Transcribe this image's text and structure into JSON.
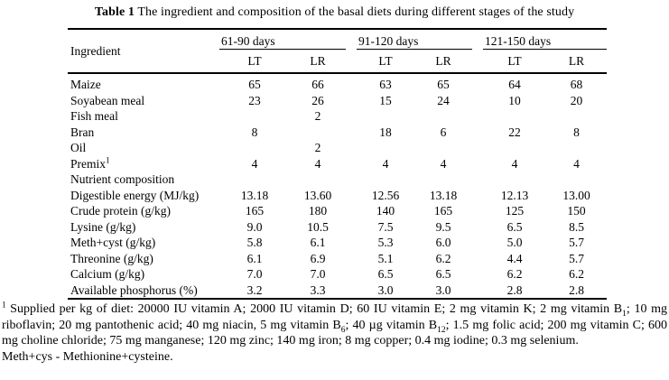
{
  "title": {
    "prefix": "Table 1",
    "text": " The ingredient and composition of the basal diets during different stages of the study"
  },
  "table": {
    "col1_header": "Ingredient",
    "groups": [
      {
        "label": "61-90 days",
        "sub": [
          "LT",
          "LR"
        ]
      },
      {
        "label": "91-120 days",
        "sub": [
          "LT",
          "LR"
        ]
      },
      {
        "label": "121-150 days",
        "sub": [
          "LT",
          "LR"
        ]
      }
    ],
    "rows": [
      {
        "label": "Maize",
        "values": [
          "65",
          "66",
          "63",
          "65",
          "64",
          "68"
        ]
      },
      {
        "label": "Soyabean meal",
        "values": [
          "23",
          "26",
          "15",
          "24",
          "10",
          "20"
        ]
      },
      {
        "label": "Fish meal",
        "values": [
          "",
          "2",
          "",
          "",
          "",
          ""
        ]
      },
      {
        "label": "Bran",
        "values": [
          "8",
          "",
          "18",
          "6",
          "22",
          "8"
        ]
      },
      {
        "label": "Oil",
        "values": [
          "",
          "2",
          "",
          "",
          "",
          ""
        ]
      },
      {
        "label": "Premix",
        "sup": "1",
        "values": [
          "4",
          "4",
          "4",
          "4",
          "4",
          "4"
        ]
      },
      {
        "label": "Nutrient composition",
        "section": true,
        "values": [
          "",
          "",
          "",
          "",
          "",
          ""
        ]
      },
      {
        "label": "Digestible energy (MJ/kg)",
        "values": [
          "13.18",
          "13.60",
          "12.56",
          "13.18",
          "12.13",
          "13.00"
        ]
      },
      {
        "label": "Crude protein (g/kg)",
        "values": [
          "165",
          "180",
          "140",
          "165",
          "125",
          "150"
        ]
      },
      {
        "label": "Lysine (g/kg)",
        "values": [
          "9.0",
          "10.5",
          "7.5",
          "9.5",
          "6.5",
          "8.5"
        ]
      },
      {
        "label": "Meth+cyst (g/kg)",
        "values": [
          "5.8",
          "6.1",
          "5.3",
          "6.0",
          "5.0",
          "5.7"
        ]
      },
      {
        "label": "Threonine (g/kg)",
        "values": [
          "6.1",
          "6.9",
          "5.1",
          "6.2",
          "4.4",
          "5.7"
        ]
      },
      {
        "label": "Calcium (g/kg)",
        "values": [
          "7.0",
          "7.0",
          "6.5",
          "6.5",
          "6.2",
          "6.2"
        ]
      },
      {
        "label": "Available phosphorus (%)",
        "values": [
          "3.2",
          "3.3",
          "3.0",
          "3.0",
          "2.8",
          "2.8"
        ]
      }
    ]
  },
  "footnote": {
    "segments": [
      {
        "style": "sup",
        "text": "1"
      },
      {
        "style": "plain",
        "text": " Supplied per kg of diet: 20000 IU vitamin A; 2000 IU vitamin D; 60 IU vitamin E; 2 mg vitamin K; 2 mg vitamin B"
      },
      {
        "style": "sub",
        "text": "1"
      },
      {
        "style": "plain",
        "text": "; 10 mg riboflavin; 20 mg pantothenic acid; 40 mg niacin, 5 mg vitamin B"
      },
      {
        "style": "sub",
        "text": "6"
      },
      {
        "style": "plain",
        "text": "; 40 µg vitamin B"
      },
      {
        "style": "sub",
        "text": "12"
      },
      {
        "style": "plain",
        "text": "; 1.5 mg folic acid; 200 mg vitamin C; 600 mg choline chloride; 75 mg manganese; 120 mg zinc; 140 mg iron; 8 mg copper; 0.4 mg iodine; 0.3 mg selenium."
      }
    ],
    "meth_note": "Meth+cys - Methionine+cysteine."
  }
}
